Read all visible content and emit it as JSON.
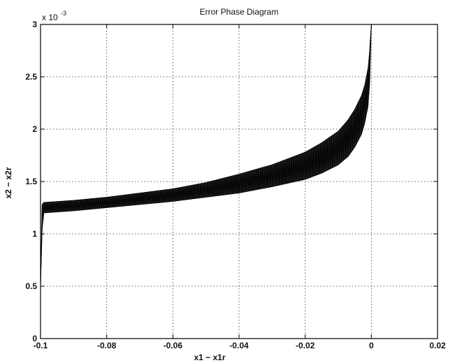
{
  "chart_data": {
    "type": "line",
    "title": "Error Phase Diagram",
    "xlabel": "x1 − x1r",
    "ylabel": "x2 − x2r",
    "y_multiplier_label": "x 10",
    "y_multiplier_exponent": "-3",
    "xlim": [
      -0.1,
      0.02
    ],
    "ylim": [
      0,
      0.003
    ],
    "x_ticks": [
      -0.1,
      -0.08,
      -0.06,
      -0.04,
      -0.02,
      0,
      0.02
    ],
    "x_tick_labels": [
      "-0.1",
      "-0.08",
      "-0.06",
      "-0.04",
      "-0.02",
      "0",
      "0.02"
    ],
    "y_ticks": [
      0,
      0.0005,
      0.001,
      0.0015,
      0.002,
      0.0025,
      0.003
    ],
    "y_tick_labels": [
      "0",
      "0.5",
      "1",
      "1.5",
      "2",
      "2.5",
      "3"
    ],
    "grid": true,
    "series": [
      {
        "color": "#000000",
        "oscillation_band": true,
        "x": [
          -0.1,
          -0.1,
          -0.0995,
          -0.099,
          -0.09,
          -0.08,
          -0.07,
          -0.06,
          -0.05,
          -0.04,
          -0.03,
          -0.02,
          -0.015,
          -0.01,
          -0.007,
          -0.005,
          -0.003,
          -0.002,
          -0.001,
          -0.0005,
          0
        ],
        "y_lower": [
          0,
          0.0005,
          0.00105,
          0.0012,
          0.00122,
          0.00125,
          0.00128,
          0.00131,
          0.00135,
          0.00139,
          0.00145,
          0.00152,
          0.00158,
          0.00166,
          0.00174,
          0.00183,
          0.00195,
          0.00206,
          0.00222,
          0.00245,
          0.003
        ],
        "y_upper": [
          0,
          0.0005,
          0.00128,
          0.0013,
          0.00132,
          0.00135,
          0.00139,
          0.00143,
          0.00149,
          0.00157,
          0.00166,
          0.00178,
          0.00187,
          0.00198,
          0.00209,
          0.00219,
          0.00232,
          0.00242,
          0.00258,
          0.00275,
          0.003
        ]
      }
    ]
  }
}
